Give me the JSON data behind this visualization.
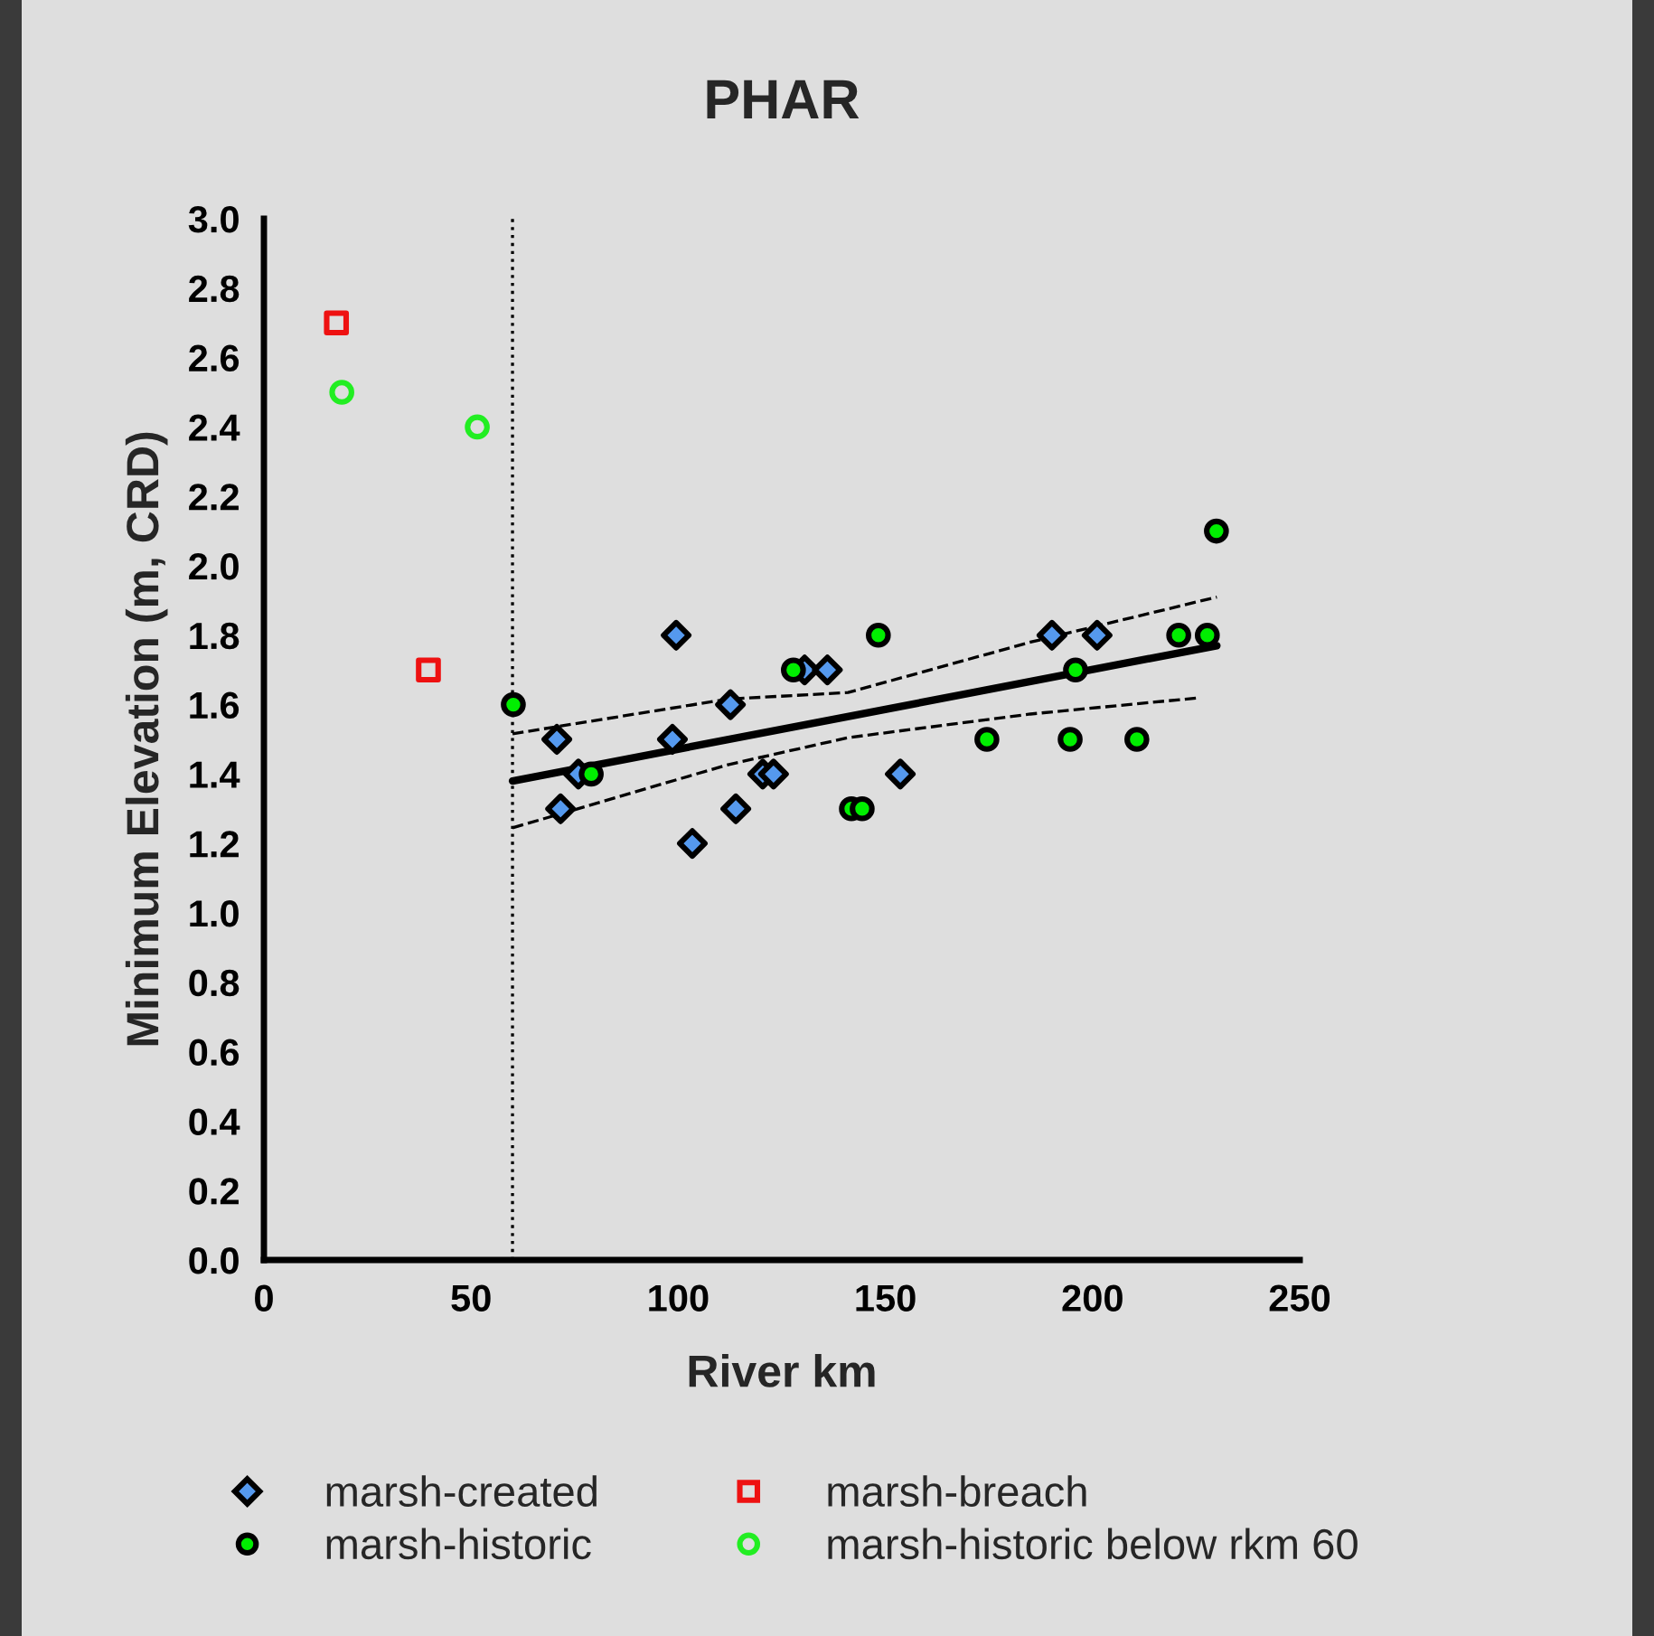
{
  "chart_data": {
    "type": "scatter",
    "title": "PHAR",
    "xlabel": "River km",
    "ylabel": "Minimum Elevation (m, CRD)",
    "xlim": [
      0,
      250
    ],
    "xticks": [
      0,
      50,
      100,
      150,
      200,
      250
    ],
    "ylim": [
      0,
      3.0
    ],
    "yticks": [
      {
        "value": 0,
        "label": "0.0"
      },
      {
        "value": 0.2,
        "label": "0.2"
      },
      {
        "value": 0.4,
        "label": "0.4"
      },
      {
        "value": 0.6,
        "label": "0.6"
      },
      {
        "value": 0.8,
        "label": "0.8"
      },
      {
        "value": 1.0,
        "label": "1.0"
      },
      {
        "value": 1.2,
        "label": "1.2"
      },
      {
        "value": 1.4,
        "label": "1.4"
      },
      {
        "value": 1.6,
        "label": "1.6"
      },
      {
        "value": 1.8,
        "label": "1.8"
      },
      {
        "value": 2.0,
        "label": "2.0"
      },
      {
        "value": 2.2,
        "label": "2.2"
      },
      {
        "value": 2.4,
        "label": "2.4"
      },
      {
        "value": 2.6,
        "label": "2.6"
      },
      {
        "value": 2.8,
        "label": "2.8"
      },
      {
        "value": 3.0,
        "label": "3.0"
      }
    ],
    "grid": false,
    "legend": "bottom",
    "ref_lines": [
      {
        "axis": "x",
        "value": 60,
        "color": "#000000",
        "line_style": "dotted"
      }
    ],
    "series": [
      {
        "name": "marsh-created",
        "marker": "diamond",
        "color": "#5599ee",
        "x": [
          70.7,
          71.6,
          75.9,
          99.5,
          98.6,
          103.4,
          112.6,
          113.9,
          120.4,
          123,
          130.5,
          136,
          153.6,
          190.2,
          201.1
        ],
        "values": [
          1.5,
          1.3,
          1.4,
          1.8,
          1.5,
          1.2,
          1.6,
          1.3,
          1.4,
          1.4,
          1.7,
          1.7,
          1.4,
          1.8,
          1.8
        ]
      },
      {
        "name": "marsh-historic",
        "marker": "circle",
        "color": "#00ee00",
        "x": [
          60.2,
          79,
          127.8,
          141.8,
          144.4,
          148.3,
          174.5,
          194.6,
          195.9,
          210.7,
          220.8,
          227.7,
          229.9
        ],
        "values": [
          1.6,
          1.4,
          1.7,
          1.3,
          1.3,
          1.8,
          1.5,
          1.5,
          1.7,
          1.5,
          1.8,
          1.8,
          2.1
        ]
      },
      {
        "name": "marsh-breach",
        "marker": "square",
        "color": "#ee1111",
        "x": [
          17.5,
          39.7
        ],
        "values": [
          2.7,
          1.7
        ]
      },
      {
        "name": "marsh-historic below rkm 60",
        "marker": "circle",
        "color": "#22ee22",
        "x": [
          18.8,
          51.5
        ],
        "values": [
          2.5,
          2.4
        ]
      },
      {
        "type": "line",
        "line_style": "solid",
        "color": "#000000",
        "x": [
          60,
          230
        ],
        "values": [
          1.38,
          1.77
        ]
      },
      {
        "type": "line",
        "line_style": "dashed",
        "color": "#000000",
        "x": [
          60,
          112,
          141,
          185,
          230
        ],
        "values": [
          1.516,
          1.616,
          1.635,
          1.78,
          1.91
        ]
      },
      {
        "type": "line",
        "line_style": "dashed",
        "color": "#000000",
        "x": [
          60,
          112,
          141,
          185,
          226
        ],
        "values": [
          1.245,
          1.427,
          1.505,
          1.573,
          1.62
        ]
      }
    ]
  }
}
